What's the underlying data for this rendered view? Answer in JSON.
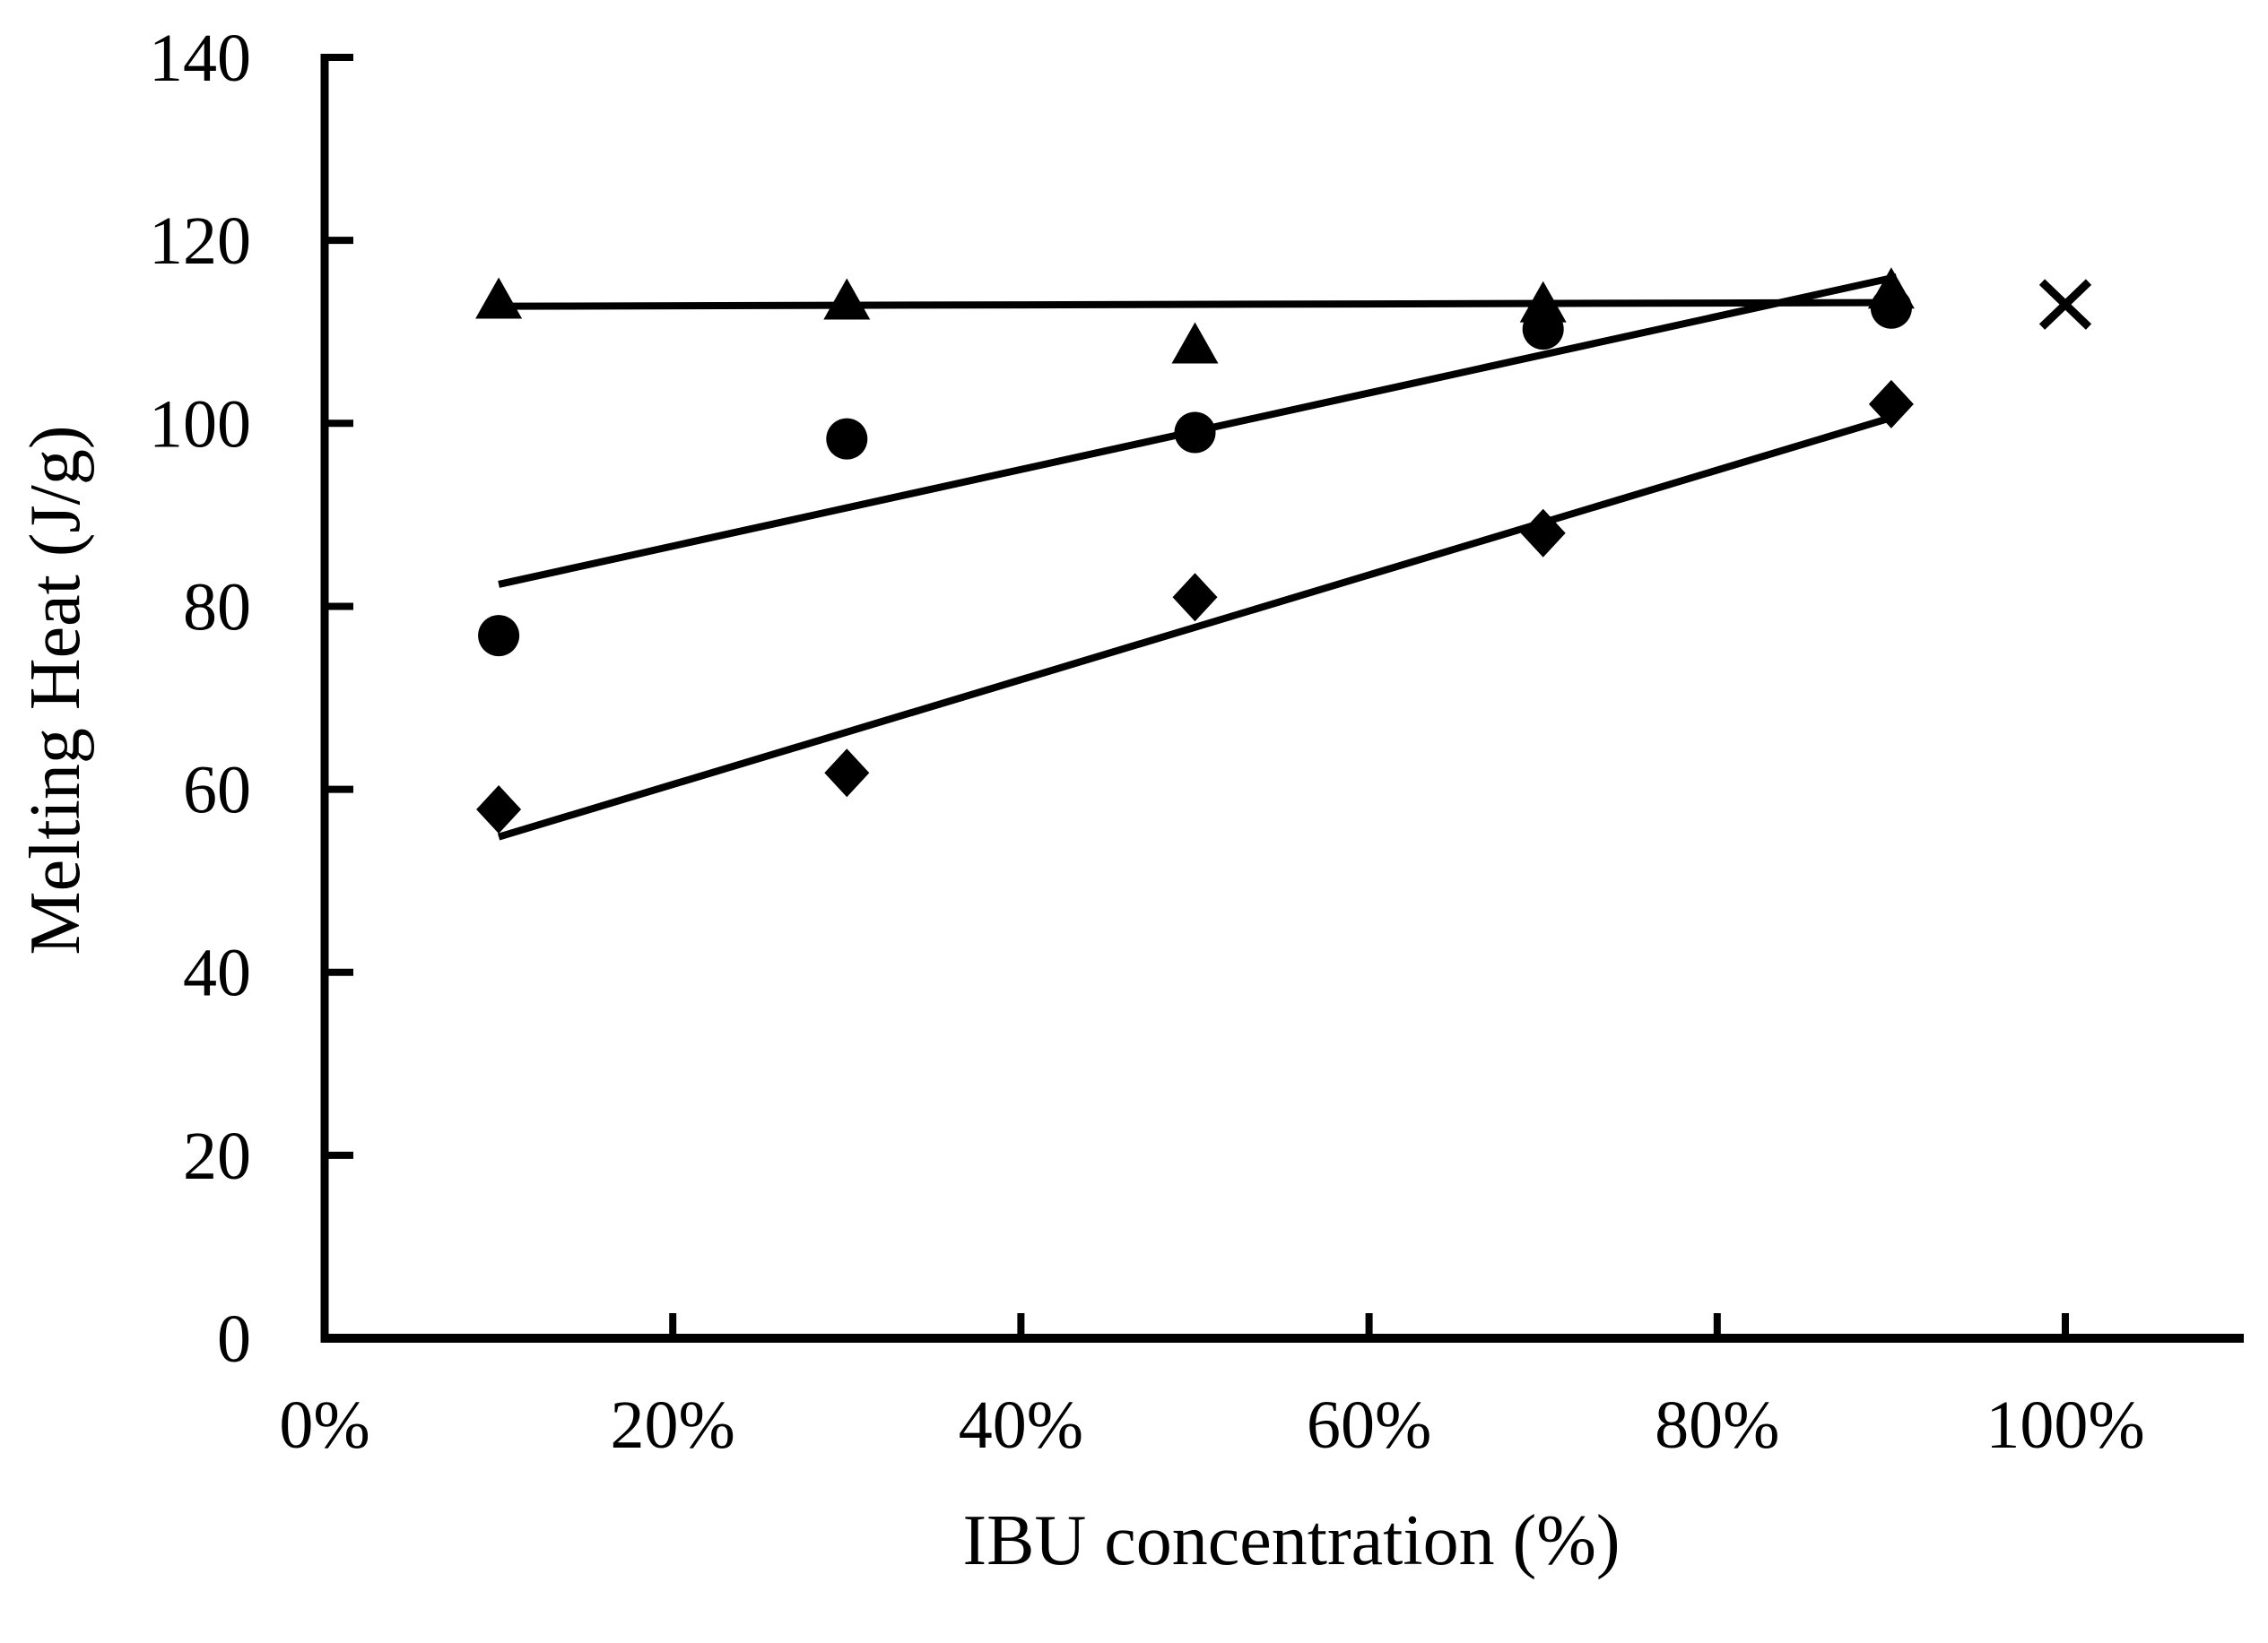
{
  "figure": {
    "background_color": "#ffffff",
    "foreground_color": "#000000"
  },
  "chart_data": {
    "type": "scatter",
    "title": "",
    "xlabel": "IBU concentration (%)",
    "ylabel": "Melting Heat (J/g)",
    "grid": false,
    "legend": "none",
    "xlim_pct": [
      0,
      110
    ],
    "ylim": [
      0,
      140
    ],
    "x_tick_values": [
      0,
      20,
      40,
      60,
      80,
      100
    ],
    "x_tick_labels": [
      "0%",
      "20%",
      "40%",
      "60%",
      "80%",
      "100%"
    ],
    "y_tick_values": [
      0,
      20,
      40,
      60,
      80,
      100,
      120,
      140
    ],
    "y_tick_labels": [
      "0",
      "20",
      "40",
      "60",
      "80",
      "100",
      "120",
      "140"
    ],
    "series": [
      {
        "name": "triangle-series",
        "marker": "triangle",
        "color": "#000000",
        "x": [
          10,
          30,
          50,
          70,
          90
        ],
        "y": [
          113.6,
          113.5,
          108.7,
          113.2,
          114.7
        ]
      },
      {
        "name": "circle-series",
        "marker": "circle",
        "color": "#000000",
        "x": [
          10,
          30,
          50,
          70,
          90
        ],
        "y": [
          76.8,
          98.3,
          99.0,
          110.3,
          112.6
        ]
      },
      {
        "name": "diamond-series",
        "marker": "diamond",
        "color": "#000000",
        "x": [
          10,
          30,
          50,
          70,
          90
        ],
        "y": [
          57.8,
          61.8,
          81.0,
          88.0,
          102.1
        ]
      },
      {
        "name": "x-series",
        "marker": "x",
        "color": "#000000",
        "x": [
          100
        ],
        "y": [
          113.0
        ]
      }
    ],
    "trendlines": [
      {
        "series": "triangle-series",
        "x1": 10,
        "y1": 112.8,
        "x2": 89.5,
        "y2": 113.2
      },
      {
        "series": "circle-series",
        "x1": 10,
        "y1": 82.4,
        "x2": 90.3,
        "y2": 116.0
      },
      {
        "series": "diamond-series",
        "x1": 10,
        "y1": 54.8,
        "x2": 89.8,
        "y2": 100.5
      }
    ]
  }
}
